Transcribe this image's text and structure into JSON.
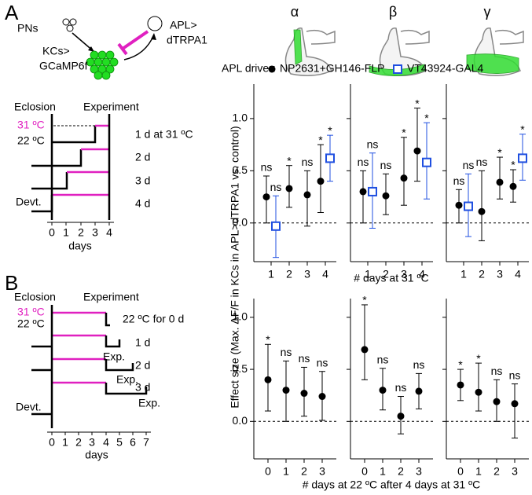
{
  "panel_a": {
    "label": "A",
    "circuit": {
      "pns": "PNs",
      "kcs": [
        "KCs>",
        "GCaMP6f"
      ],
      "apl": [
        "APL>",
        "dTRPA1"
      ]
    },
    "timeline": {
      "eclosion": "Eclosion",
      "experiment": "Experiment",
      "hot": "31 ºC",
      "cool": "22 ºC",
      "rows": [
        "1 d at 31 ºC",
        "2 d",
        "3 d",
        "4 d"
      ],
      "devt": "Devt.",
      "ticks": [
        0,
        1,
        2,
        3,
        4
      ],
      "xlabel": "days"
    }
  },
  "panel_b": {
    "label": "B",
    "timeline": {
      "eclosion": "Eclosion",
      "experiment": "Experiment",
      "hot": "31 ºC",
      "cool": "22 ºC",
      "rows": [
        "22 ºC for 0 d",
        "1 d",
        "2 d",
        "3 d"
      ],
      "exp": [
        "Exp.",
        "Exp.",
        "Exp."
      ],
      "devt": "Devt.",
      "ticks": [
        0,
        1,
        2,
        3,
        4,
        5,
        6,
        7
      ],
      "xlabel": "days"
    }
  },
  "column_titles": [
    "α",
    "β",
    "γ"
  ],
  "legend": {
    "title": "APL driver:",
    "items": [
      {
        "name": "NP2631+GH146-FLP",
        "color": "#000000",
        "marker": "circle"
      },
      {
        "name": "VT43924-GAL4",
        "color": "#1f4fe0",
        "marker": "square"
      }
    ]
  },
  "ylabel": "Effect size (Max. ΔF/F in KCs in APL>dTRPA1 vs. control)",
  "xlabels": [
    "# days at 31 ºC",
    "# days at 22 ºC after 4 days at 31 ºC"
  ],
  "chart_data": [
    {
      "type": "errorbar",
      "categories": [
        "1",
        "2",
        "3",
        "4"
      ],
      "ylim": [
        -0.37,
        1.33
      ],
      "hline": 0,
      "yticks": [
        {
          "value": 0,
          "label": "0.0"
        },
        {
          "value": 0.5,
          "label": "0.5"
        },
        {
          "value": 1,
          "label": "1.0"
        }
      ],
      "series": [
        {
          "color": "#000000",
          "marker": "circle",
          "values": [
            0.25,
            0.33,
            0.27,
            0.4
          ],
          "lower": [
            0.0,
            0.15,
            -0.03,
            0.1
          ],
          "upper": [
            0.45,
            0.55,
            0.5,
            0.75
          ],
          "labels": [
            "ns",
            "*",
            "ns",
            "*"
          ]
        },
        {
          "color": "#1f4fe0",
          "marker": "square",
          "values": [
            -0.03,
            null,
            null,
            0.62
          ],
          "lower": [
            -0.33,
            null,
            null,
            0.4
          ],
          "upper": [
            0.26,
            null,
            null,
            0.84
          ],
          "labels": [
            "ns",
            null,
            null,
            "*"
          ]
        }
      ]
    },
    {
      "type": "errorbar",
      "categories": [
        "1",
        "2",
        "3",
        "4"
      ],
      "ylim": [
        -0.37,
        1.33
      ],
      "hline": 0,
      "series": [
        {
          "color": "#000000",
          "marker": "circle",
          "values": [
            0.3,
            0.26,
            0.43,
            0.69
          ],
          "lower": [
            0.0,
            0.08,
            0.17,
            0.4
          ],
          "upper": [
            0.5,
            0.47,
            0.82,
            1.1
          ],
          "labels": [
            "ns",
            "ns",
            "*",
            "*"
          ]
        },
        {
          "color": "#1f4fe0",
          "marker": "square",
          "values": [
            0.3,
            null,
            null,
            0.58
          ],
          "lower": [
            -0.05,
            null,
            null,
            0.23
          ],
          "upper": [
            0.67,
            null,
            null,
            0.96
          ],
          "labels": [
            "ns",
            null,
            null,
            "*"
          ]
        }
      ]
    },
    {
      "type": "errorbar",
      "categories": [
        "1",
        "2",
        "3",
        "4"
      ],
      "ylim": [
        -0.37,
        1.33
      ],
      "hline": 0,
      "series": [
        {
          "color": "#000000",
          "marker": "circle",
          "values": [
            0.17,
            0.11,
            0.39,
            0.35
          ],
          "lower": [
            0.0,
            -0.17,
            0.23,
            0.2
          ],
          "upper": [
            0.32,
            0.5,
            0.63,
            0.51
          ],
          "labels": [
            "ns",
            "ns",
            "*",
            "*"
          ]
        },
        {
          "color": "#1f4fe0",
          "marker": "square",
          "values": [
            0.16,
            null,
            null,
            0.62
          ],
          "lower": [
            -0.13,
            null,
            null,
            0.41
          ],
          "upper": [
            0.47,
            null,
            null,
            0.85
          ],
          "labels": [
            "ns",
            null,
            null,
            "*"
          ]
        }
      ]
    },
    {
      "type": "errorbar",
      "categories": [
        "0",
        "1",
        "2",
        "3"
      ],
      "ylim": [
        -0.36,
        1.18
      ],
      "hline": 0,
      "yticks": [
        {
          "value": 0,
          "label": "0.0"
        },
        {
          "value": 0.5,
          "label": "0.5"
        },
        {
          "value": 1,
          "label": "1.0"
        }
      ],
      "series": [
        {
          "color": "#000000",
          "marker": "circle",
          "values": [
            0.4,
            0.3,
            0.27,
            0.24
          ],
          "lower": [
            0.1,
            0.0,
            0.05,
            0.01
          ],
          "upper": [
            0.74,
            0.58,
            0.52,
            0.48
          ],
          "labels": [
            "*",
            "ns",
            "ns",
            "ns"
          ]
        }
      ]
    },
    {
      "type": "errorbar",
      "categories": [
        "0",
        "1",
        "2",
        "3"
      ],
      "ylim": [
        -0.36,
        1.18
      ],
      "hline": 0,
      "series": [
        {
          "color": "#000000",
          "marker": "circle",
          "values": [
            0.69,
            0.3,
            0.05,
            0.29
          ],
          "lower": [
            0.4,
            0.11,
            -0.12,
            0.12
          ],
          "upper": [
            1.12,
            0.51,
            0.24,
            0.46
          ],
          "labels": [
            "*",
            "ns",
            "ns",
            "ns"
          ]
        }
      ]
    },
    {
      "type": "errorbar",
      "categories": [
        "0",
        "1",
        "2",
        "3"
      ],
      "ylim": [
        -0.36,
        1.18
      ],
      "hline": 0,
      "series": [
        {
          "color": "#000000",
          "marker": "circle",
          "values": [
            0.35,
            0.28,
            0.19,
            0.17
          ],
          "lower": [
            0.2,
            0.1,
            0.0,
            -0.16
          ],
          "upper": [
            0.5,
            0.56,
            0.4,
            0.36
          ],
          "labels": [
            "*",
            "*",
            "ns",
            "ns"
          ]
        }
      ]
    }
  ]
}
